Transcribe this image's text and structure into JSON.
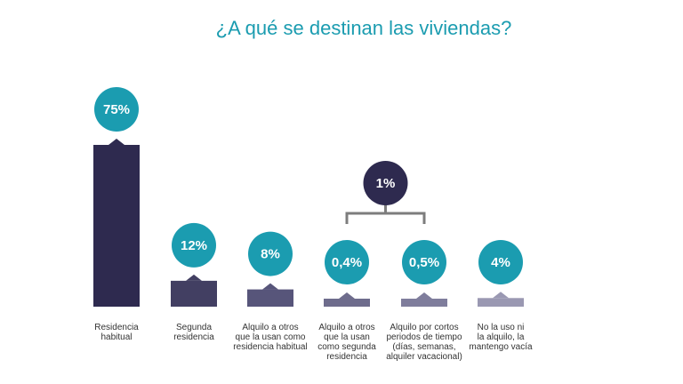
{
  "chart_data": {
    "type": "bar",
    "title": "¿A qué se destinan las viviendas?",
    "categories": [
      "Residencia habitual",
      "Segunda residencia",
      "Alquilo a otros que la usan como residencia habitual",
      "Alquilo a otros que la usan como segunda residencia",
      "Alquilo por cortos periodos de tiempo (días, semanas, alquiler vacacional)",
      "No la uso ni la alquilo, la mantengo vacía"
    ],
    "category_lines": [
      [
        "Residencia",
        "habitual"
      ],
      [
        "Segunda",
        "residencia"
      ],
      [
        "Alquilo a otros",
        "que la usan como",
        "residencia habitual"
      ],
      [
        "Alquilo a otros",
        "que la usan",
        "como segunda",
        "residencia"
      ],
      [
        "Alquilo por cortos",
        "periodos de tiempo",
        "(días, semanas,",
        "alquiler vacacional)"
      ],
      [
        "No la uso ni",
        "la alquilo, la",
        "mantengo vacía"
      ]
    ],
    "values": [
      75,
      12,
      8,
      0.4,
      0.5,
      4
    ],
    "data_labels": [
      "75%",
      "12%",
      "8%",
      "0,4%",
      "0,5%",
      "4%"
    ],
    "group": {
      "label": "1%",
      "value": 1,
      "members": [
        3,
        4
      ]
    },
    "bar_colors": [
      "#2e2a4f",
      "#423f62",
      "#57557a",
      "#6e6c8c",
      "#7f7d9c",
      "#9a98b2"
    ],
    "bubble_color": "#1b9cb0",
    "group_bubble_color": "#2e2a4f",
    "bracket_color": "#7d7d7d",
    "xlabel": "",
    "ylabel": "",
    "grid": false
  }
}
